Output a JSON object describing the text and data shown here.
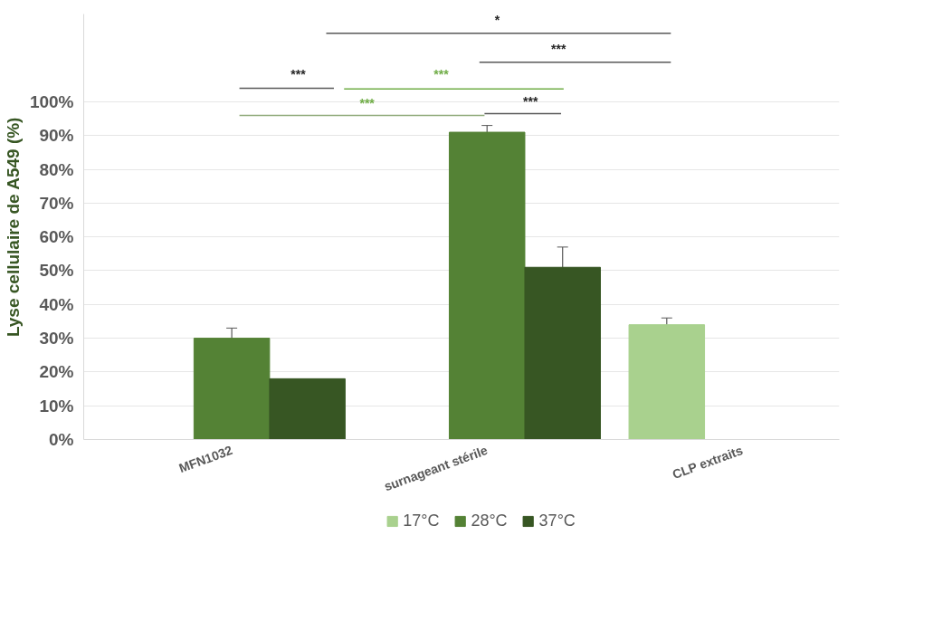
{
  "chart_data": {
    "type": "bar",
    "ylabel": "Lyse cellulaire de A549 (%)",
    "categories": [
      "MFN1032",
      "surnageant stérile",
      "CLP extraits"
    ],
    "series": [
      {
        "name": "17°C",
        "color": "#a9d18e",
        "values": [
          null,
          null,
          34
        ],
        "errors": [
          null,
          null,
          2
        ]
      },
      {
        "name": "28°C",
        "color": "#548235",
        "values": [
          30,
          91,
          null
        ],
        "errors": [
          3,
          2,
          null
        ]
      },
      {
        "name": "37°C",
        "color": "#375623",
        "values": [
          18,
          51,
          null
        ],
        "errors": [
          null,
          6,
          null
        ]
      }
    ],
    "ylim": [
      0,
      126
    ],
    "yticks": [
      {
        "value": 0,
        "label": "0%"
      },
      {
        "value": 10,
        "label": "10%"
      },
      {
        "value": 20,
        "label": "20%"
      },
      {
        "value": 30,
        "label": "30%"
      },
      {
        "value": 40,
        "label": "40%"
      },
      {
        "value": 50,
        "label": "50%"
      },
      {
        "value": 60,
        "label": "60%"
      },
      {
        "value": 70,
        "label": "70%"
      },
      {
        "value": 80,
        "label": "80%"
      },
      {
        "value": 90,
        "label": "90%"
      },
      {
        "value": 100,
        "label": "100%"
      }
    ],
    "grid": "y",
    "legend": "bottom",
    "annotations": [
      "*",
      "***",
      "***",
      "***",
      "***",
      "***"
    ]
  }
}
